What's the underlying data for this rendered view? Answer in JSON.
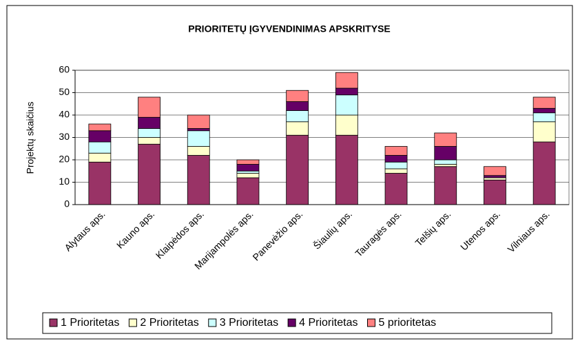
{
  "chart_data": {
    "type": "stacked_bar",
    "title": "PRIORITETŲ ĮGYVENDINIMAS APSKRITYSE",
    "y_label": "Projektų skaičius",
    "categories": [
      "Alytaus aps.",
      "Kauno aps.",
      "Klaipėdos aps.",
      "Marijampolės aps.",
      "Panevėžio aps.",
      "Šiaulių aps.",
      "Tauragės aps.",
      "Telšių aps.",
      "Utenos aps.",
      "Vilniaus aps."
    ],
    "series": [
      {
        "name": "1 Prioritetas",
        "color": "#993366",
        "values": [
          19,
          27,
          22,
          12,
          31,
          31,
          14,
          17,
          11,
          28
        ]
      },
      {
        "name": "2 Prioritetas",
        "color": "#ffffcc",
        "values": [
          4,
          3,
          4,
          2,
          6,
          9,
          2,
          1,
          1,
          9
        ]
      },
      {
        "name": "3 Prioritetas",
        "color": "#ccffff",
        "values": [
          5,
          4,
          7,
          1,
          5,
          9,
          3,
          2,
          0,
          4
        ]
      },
      {
        "name": "4 Prioritetas",
        "color": "#660066",
        "values": [
          5,
          5,
          1,
          3,
          4,
          3,
          3,
          6,
          1,
          2
        ]
      },
      {
        "name": "5 prioritetas",
        "color": "#ff8080",
        "values": [
          3,
          9,
          6,
          2,
          5,
          7,
          4,
          6,
          4,
          5
        ]
      }
    ],
    "ylim": [
      0,
      60
    ],
    "yticks": [
      0,
      10,
      20,
      30,
      40,
      50,
      60
    ],
    "grid": true,
    "legend": "bottom"
  }
}
